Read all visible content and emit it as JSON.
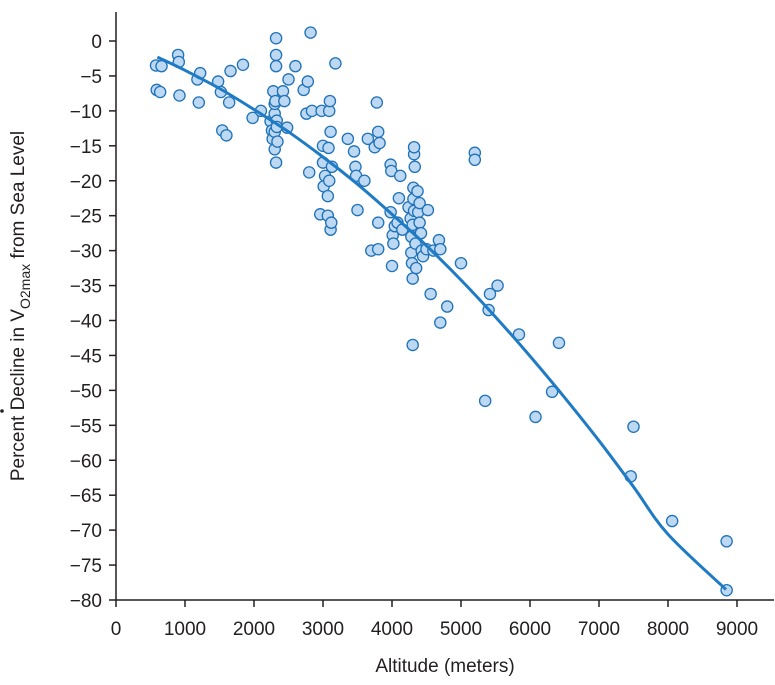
{
  "chart_data": {
    "type": "scatter",
    "title": "",
    "xlabel": "Altitude (meters)",
    "ylabel": {
      "prefix": "Percent Decline in ",
      "symbol": "V",
      "sub": "O2max",
      "suffix": " from Sea Level"
    },
    "xlim": [
      0,
      9500
    ],
    "ylim": [
      -80,
      4
    ],
    "x_ticks": [
      0,
      1000,
      2000,
      3000,
      4000,
      5000,
      6000,
      7000,
      8000,
      9000
    ],
    "y_ticks": [
      0,
      -5,
      -10,
      -15,
      -20,
      -25,
      -30,
      -35,
      -40,
      -45,
      -50,
      -55,
      -60,
      -65,
      -70,
      -75,
      -80
    ],
    "x_tick_labels": [
      "0",
      "1000",
      "2000",
      "3000",
      "4000",
      "5000",
      "6000",
      "7000",
      "8000",
      "9000"
    ],
    "y_tick_labels": [
      "0",
      "−5",
      "−10",
      "−15",
      "−20",
      "−25",
      "−30",
      "−35",
      "−40",
      "−45",
      "−50",
      "−55",
      "−60",
      "−65",
      "−70",
      "−75",
      "−80"
    ],
    "grid": false,
    "colors": {
      "marker_fill": "#bcd8f2",
      "marker_stroke": "#1f72b8",
      "trend_line": "#1f7bc4",
      "axis": "#231f20"
    },
    "points": [
      [
        580,
        -3.5
      ],
      [
        590,
        -7
      ],
      [
        640,
        -7.3
      ],
      [
        660,
        -3.6
      ],
      [
        900,
        -2
      ],
      [
        910,
        -3
      ],
      [
        920,
        -7.8
      ],
      [
        1180,
        -5.5
      ],
      [
        1200,
        -8.8
      ],
      [
        1220,
        -4.6
      ],
      [
        1480,
        -5.8
      ],
      [
        1520,
        -7.3
      ],
      [
        1540,
        -12.8
      ],
      [
        1600,
        -13.5
      ],
      [
        1640,
        -8.8
      ],
      [
        1660,
        -4.3
      ],
      [
        1840,
        -3.4
      ],
      [
        1980,
        -11
      ],
      [
        2100,
        -10
      ],
      [
        2240,
        -11.5
      ],
      [
        2260,
        -12.8
      ],
      [
        2270,
        -14
      ],
      [
        2280,
        -7.2
      ],
      [
        2300,
        -15.5
      ],
      [
        2300,
        -10.4
      ],
      [
        2300,
        -9
      ],
      [
        2310,
        -8.6
      ],
      [
        2300,
        -13
      ],
      [
        2320,
        -17.4
      ],
      [
        2320,
        0.4
      ],
      [
        2320,
        -2
      ],
      [
        2320,
        -3.6
      ],
      [
        2330,
        -11.4
      ],
      [
        2330,
        -12.3
      ],
      [
        2340,
        -14.4
      ],
      [
        2420,
        -7.2
      ],
      [
        2440,
        -8.6
      ],
      [
        2480,
        -12.4
      ],
      [
        2500,
        -5.5
      ],
      [
        2600,
        -3.6
      ],
      [
        2720,
        -7
      ],
      [
        2760,
        -10.4
      ],
      [
        2780,
        -5.8
      ],
      [
        2800,
        -18.8
      ],
      [
        2820,
        1.2
      ],
      [
        2840,
        -10
      ],
      [
        2960,
        -24.8
      ],
      [
        2980,
        -10
      ],
      [
        3000,
        -17.4
      ],
      [
        3000,
        -15
      ],
      [
        3010,
        -20.8
      ],
      [
        3030,
        -19.3
      ],
      [
        3070,
        -22.2
      ],
      [
        3070,
        -25
      ],
      [
        3080,
        -15.3
      ],
      [
        3090,
        -20
      ],
      [
        3090,
        -10
      ],
      [
        3100,
        -8.6
      ],
      [
        3110,
        -13
      ],
      [
        3110,
        -27
      ],
      [
        3120,
        -26
      ],
      [
        3130,
        -18
      ],
      [
        3180,
        -3.2
      ],
      [
        3360,
        -14
      ],
      [
        3450,
        -15.8
      ],
      [
        3470,
        -18
      ],
      [
        3480,
        -19.3
      ],
      [
        3500,
        -24.2
      ],
      [
        3600,
        -20
      ],
      [
        3650,
        -14
      ],
      [
        3700,
        -30
      ],
      [
        3750,
        -15.2
      ],
      [
        3780,
        -8.8
      ],
      [
        3800,
        -13
      ],
      [
        3820,
        -14.6
      ],
      [
        3800,
        -26
      ],
      [
        3800,
        -29.8
      ],
      [
        3980,
        -17.7
      ],
      [
        3990,
        -18.6
      ],
      [
        3980,
        -24.5
      ],
      [
        4000,
        -32.2
      ],
      [
        4010,
        -27.8
      ],
      [
        4020,
        -29
      ],
      [
        4040,
        -26.5
      ],
      [
        4080,
        -26
      ],
      [
        4100,
        -22.5
      ],
      [
        4120,
        -19.3
      ],
      [
        4150,
        -27
      ],
      [
        4240,
        -23.8
      ],
      [
        4270,
        -25.4
      ],
      [
        4280,
        -28
      ],
      [
        4280,
        -30.3
      ],
      [
        4290,
        -31.8
      ],
      [
        4300,
        -26.3
      ],
      [
        4300,
        -43.5
      ],
      [
        4300,
        -34
      ],
      [
        4310,
        -21
      ],
      [
        4310,
        -22.6
      ],
      [
        4320,
        -24.3
      ],
      [
        4320,
        -16.2
      ],
      [
        4320,
        -15.2
      ],
      [
        4330,
        -18
      ],
      [
        4340,
        -29
      ],
      [
        4350,
        -32.5
      ],
      [
        4370,
        -21.5
      ],
      [
        4380,
        -24.5
      ],
      [
        4400,
        -26
      ],
      [
        4400,
        -23.2
      ],
      [
        4420,
        -27.5
      ],
      [
        4430,
        -30
      ],
      [
        4450,
        -30.8
      ],
      [
        4500,
        -29.8
      ],
      [
        4520,
        -24.2
      ],
      [
        4560,
        -36.2
      ],
      [
        4600,
        -30
      ],
      [
        4680,
        -28.5
      ],
      [
        4700,
        -29.8
      ],
      [
        4700,
        -40.3
      ],
      [
        4800,
        -38
      ],
      [
        5000,
        -31.8
      ],
      [
        5200,
        -16
      ],
      [
        5200,
        -17
      ],
      [
        5350,
        -51.5
      ],
      [
        5400,
        -38.5
      ],
      [
        5420,
        -36.2
      ],
      [
        5530,
        -35
      ],
      [
        5840,
        -42
      ],
      [
        6080,
        -53.8
      ],
      [
        6320,
        -50.2
      ],
      [
        6420,
        -43.2
      ],
      [
        7460,
        -62.3
      ],
      [
        7500,
        -55.2
      ],
      [
        8060,
        -68.7
      ],
      [
        8850,
        -71.6
      ],
      [
        8850,
        -78.6
      ]
    ],
    "trend_line": [
      [
        600,
        -2.3
      ],
      [
        1000,
        -4.2
      ],
      [
        1500,
        -6.8
      ],
      [
        2000,
        -9.8
      ],
      [
        2500,
        -13
      ],
      [
        3000,
        -16.6
      ],
      [
        3500,
        -20.5
      ],
      [
        4000,
        -24.8
      ],
      [
        4500,
        -29.3
      ],
      [
        5000,
        -34.2
      ],
      [
        5500,
        -39.5
      ],
      [
        6000,
        -45.1
      ],
      [
        6500,
        -51
      ],
      [
        7000,
        -57.2
      ],
      [
        7500,
        -63.8
      ],
      [
        8000,
        -70.6
      ],
      [
        8840,
        -78.5
      ]
    ]
  }
}
